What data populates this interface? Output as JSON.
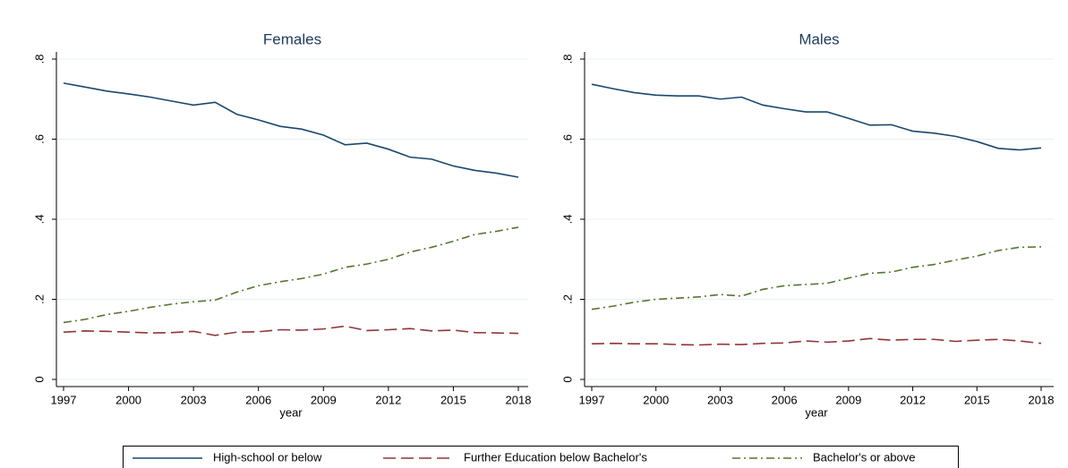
{
  "chart_data": [
    {
      "type": "line",
      "title": "Females",
      "xlabel": "year",
      "x": [
        1997,
        1998,
        1999,
        2000,
        2001,
        2002,
        2003,
        2004,
        2005,
        2006,
        2007,
        2008,
        2009,
        2010,
        2011,
        2012,
        2013,
        2014,
        2015,
        2016,
        2017,
        2018
      ],
      "xlim": [
        1997,
        2018
      ],
      "xticks": [
        1997,
        2000,
        2003,
        2006,
        2009,
        2012,
        2015,
        2018
      ],
      "ylim": [
        0,
        0.8
      ],
      "yticks": [
        0,
        {
          "value": 0.2,
          "label": ".2"
        },
        {
          "value": 0.4,
          "label": ".4"
        },
        {
          "value": 0.6,
          "label": ".6"
        },
        {
          "value": 0.8,
          "label": ".8"
        }
      ],
      "grid": true,
      "series": [
        {
          "name": "High-school or below",
          "color": "#1a476f",
          "dash": "solid",
          "values": [
            0.74,
            0.73,
            0.72,
            0.713,
            0.705,
            0.695,
            0.685,
            0.692,
            0.662,
            0.648,
            0.632,
            0.625,
            0.61,
            0.586,
            0.59,
            0.575,
            0.555,
            0.55,
            0.533,
            0.522,
            0.515,
            0.505
          ]
        },
        {
          "name": "Further Education below Bachelor's",
          "color": "#90353b",
          "dash": "dashed",
          "values": [
            0.118,
            0.121,
            0.12,
            0.118,
            0.116,
            0.117,
            0.12,
            0.11,
            0.118,
            0.119,
            0.124,
            0.123,
            0.126,
            0.133,
            0.122,
            0.124,
            0.127,
            0.121,
            0.123,
            0.117,
            0.116,
            0.115
          ]
        },
        {
          "name": "Bachelor's or above",
          "color": "#55752f",
          "dash": "dashdot",
          "values": [
            0.142,
            0.15,
            0.162,
            0.17,
            0.18,
            0.188,
            0.194,
            0.198,
            0.218,
            0.234,
            0.244,
            0.252,
            0.263,
            0.28,
            0.288,
            0.3,
            0.318,
            0.33,
            0.345,
            0.362,
            0.37,
            0.38
          ]
        }
      ]
    },
    {
      "type": "line",
      "title": "Males",
      "xlabel": "year",
      "x": [
        1997,
        1998,
        1999,
        2000,
        2001,
        2002,
        2003,
        2004,
        2005,
        2006,
        2007,
        2008,
        2009,
        2010,
        2011,
        2012,
        2013,
        2014,
        2015,
        2016,
        2017,
        2018
      ],
      "xlim": [
        1997,
        2018
      ],
      "xticks": [
        1997,
        2000,
        2003,
        2006,
        2009,
        2012,
        2015,
        2018
      ],
      "ylim": [
        0,
        0.8
      ],
      "yticks": [
        0,
        {
          "value": 0.2,
          "label": ".2"
        },
        {
          "value": 0.4,
          "label": ".4"
        },
        {
          "value": 0.6,
          "label": ".6"
        },
        {
          "value": 0.8,
          "label": ".8"
        }
      ],
      "grid": true,
      "series": [
        {
          "color": "#1a476f",
          "dash": "solid",
          "values": [
            0.737,
            0.726,
            0.716,
            0.71,
            0.708,
            0.708,
            0.7,
            0.705,
            0.685,
            0.676,
            0.668,
            0.668,
            0.652,
            0.635,
            0.636,
            0.62,
            0.615,
            0.607,
            0.594,
            0.577,
            0.573,
            0.578
          ]
        },
        {
          "color": "#90353b",
          "dash": "dashed",
          "values": [
            0.089,
            0.09,
            0.089,
            0.089,
            0.087,
            0.086,
            0.088,
            0.087,
            0.09,
            0.091,
            0.096,
            0.093,
            0.096,
            0.102,
            0.098,
            0.1,
            0.1,
            0.095,
            0.098,
            0.1,
            0.096,
            0.09
          ]
        },
        {
          "color": "#55752f",
          "dash": "dashdot",
          "values": [
            0.175,
            0.183,
            0.193,
            0.2,
            0.203,
            0.206,
            0.212,
            0.208,
            0.225,
            0.234,
            0.237,
            0.24,
            0.253,
            0.265,
            0.268,
            0.28,
            0.287,
            0.298,
            0.308,
            0.322,
            0.33,
            0.331
          ]
        }
      ]
    }
  ]
}
